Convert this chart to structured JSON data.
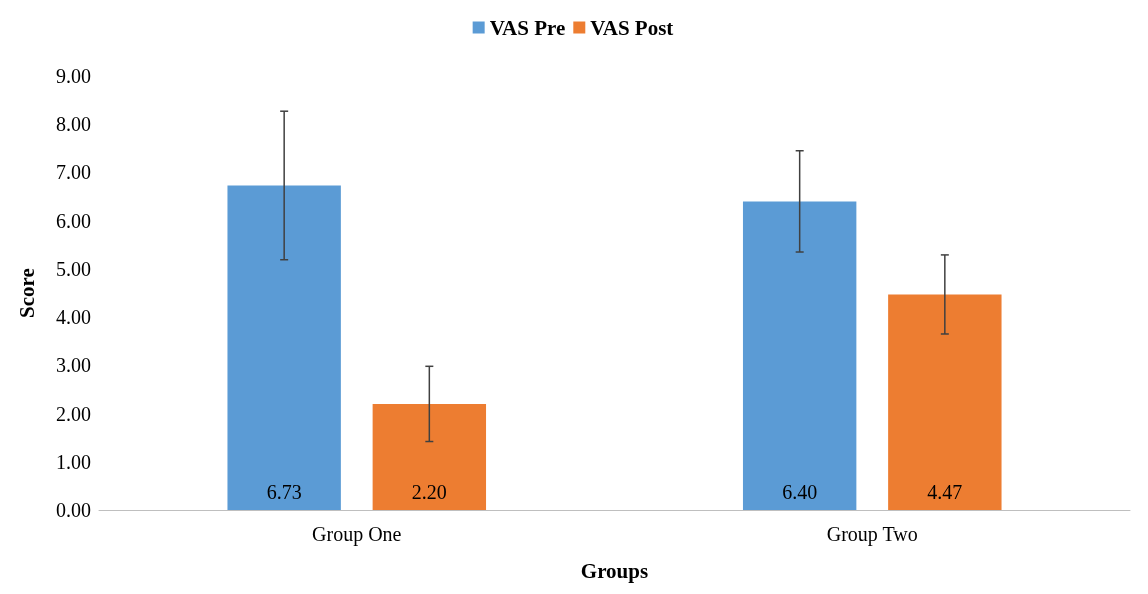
{
  "chart_data": {
    "type": "bar",
    "xlabel": "Groups",
    "ylabel": "Score",
    "categories": [
      "Group One",
      "Group Two"
    ],
    "series": [
      {
        "name": "VAS Pre",
        "color": "#5b9bd5",
        "values": [
          6.73,
          6.4
        ],
        "value_labels": [
          "6.73",
          "6.40"
        ],
        "errors": [
          1.54,
          1.05
        ]
      },
      {
        "name": "VAS Post",
        "color": "#ed7d31",
        "values": [
          2.2,
          4.47
        ],
        "value_labels": [
          "2.20",
          "4.47"
        ],
        "errors": [
          0.78,
          0.82
        ]
      }
    ],
    "ylim": [
      0,
      9
    ],
    "yticks": [
      {
        "value": 0,
        "label": "0.00"
      },
      {
        "value": 1,
        "label": "1.00"
      },
      {
        "value": 2,
        "label": "2.00"
      },
      {
        "value": 3,
        "label": "3.00"
      },
      {
        "value": 4,
        "label": "4.00"
      },
      {
        "value": 5,
        "label": "5.00"
      },
      {
        "value": 6,
        "label": "6.00"
      },
      {
        "value": 7,
        "label": "7.00"
      },
      {
        "value": 8,
        "label": "8.00"
      },
      {
        "value": 9,
        "label": "9.00"
      }
    ],
    "legend": "top",
    "grid": false
  }
}
